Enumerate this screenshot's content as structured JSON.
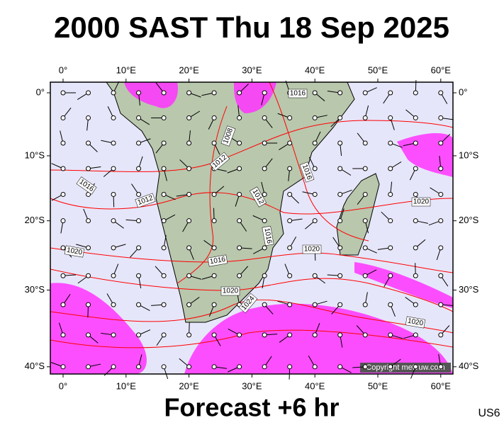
{
  "header": {
    "title": "2000 SAST Thu 18 Sep 2025"
  },
  "footer": {
    "subtitle": "Forecast +6 hr",
    "code": "US6"
  },
  "map": {
    "copyright": "Copyright metvuw.com",
    "lon_ticks": [
      {
        "value": 0,
        "label": "0°"
      },
      {
        "value": 10,
        "label": "10°E"
      },
      {
        "value": 20,
        "label": "20°E"
      },
      {
        "value": 30,
        "label": "30°E"
      },
      {
        "value": 40,
        "label": "40°E"
      },
      {
        "value": 50,
        "label": "50°E"
      },
      {
        "value": 60,
        "label": "60°E"
      }
    ],
    "lat_ticks": [
      {
        "value": 0,
        "label": "0°"
      },
      {
        "value": -10,
        "label": "10°S"
      },
      {
        "value": -20,
        "label": "20°S"
      },
      {
        "value": -30,
        "label": "30°S"
      },
      {
        "value": -40,
        "label": "40°S"
      }
    ],
    "isobar_labels": [
      "1016",
      "1016",
      "1012",
      "1008",
      "1012",
      "1016",
      "1012",
      "1016",
      "1020",
      "1016",
      "1020",
      "1020",
      "1020",
      "1024",
      "1020"
    ]
  }
}
